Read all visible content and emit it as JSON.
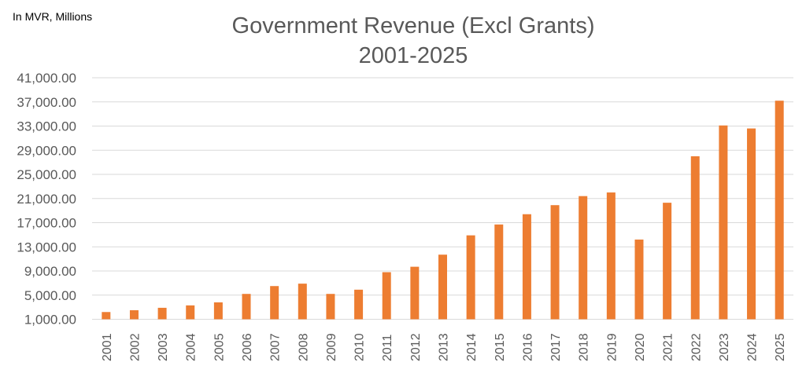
{
  "unit_note": "In MVR, Millions",
  "chart_data": {
    "type": "bar",
    "title": "Government Revenue (Excl Grants)",
    "subtitle": "2001-2025",
    "xlabel": "",
    "ylabel": "",
    "ylim": [
      1000,
      41000
    ],
    "yticks": [
      "1,000.00",
      "5,000.00",
      "9,000.00",
      "13,000.00",
      "17,000.00",
      "21,000.00",
      "25,000.00",
      "29,000.00",
      "33,000.00",
      "37,000.00",
      "41,000.00"
    ],
    "ytick_values": [
      1000,
      5000,
      9000,
      13000,
      17000,
      21000,
      25000,
      29000,
      33000,
      37000,
      41000
    ],
    "categories": [
      "2001",
      "2002",
      "2003",
      "2004",
      "2005",
      "2006",
      "2007",
      "2008",
      "2009",
      "2010",
      "2011",
      "2012",
      "2013",
      "2014",
      "2015",
      "2016",
      "2017",
      "2018",
      "2019",
      "2020",
      "2021",
      "2022",
      "2023",
      "2024",
      "2025"
    ],
    "values": [
      2200,
      2500,
      2900,
      3300,
      3800,
      5200,
      6500,
      6900,
      5200,
      5900,
      8800,
      9700,
      11700,
      14900,
      16700,
      18400,
      19900,
      21400,
      22000,
      14200,
      20300,
      28000,
      33100,
      32600,
      37200
    ],
    "grid": true,
    "legend": "none",
    "bar_color": "#ED7D31",
    "grid_color": "#D9D9D9"
  }
}
